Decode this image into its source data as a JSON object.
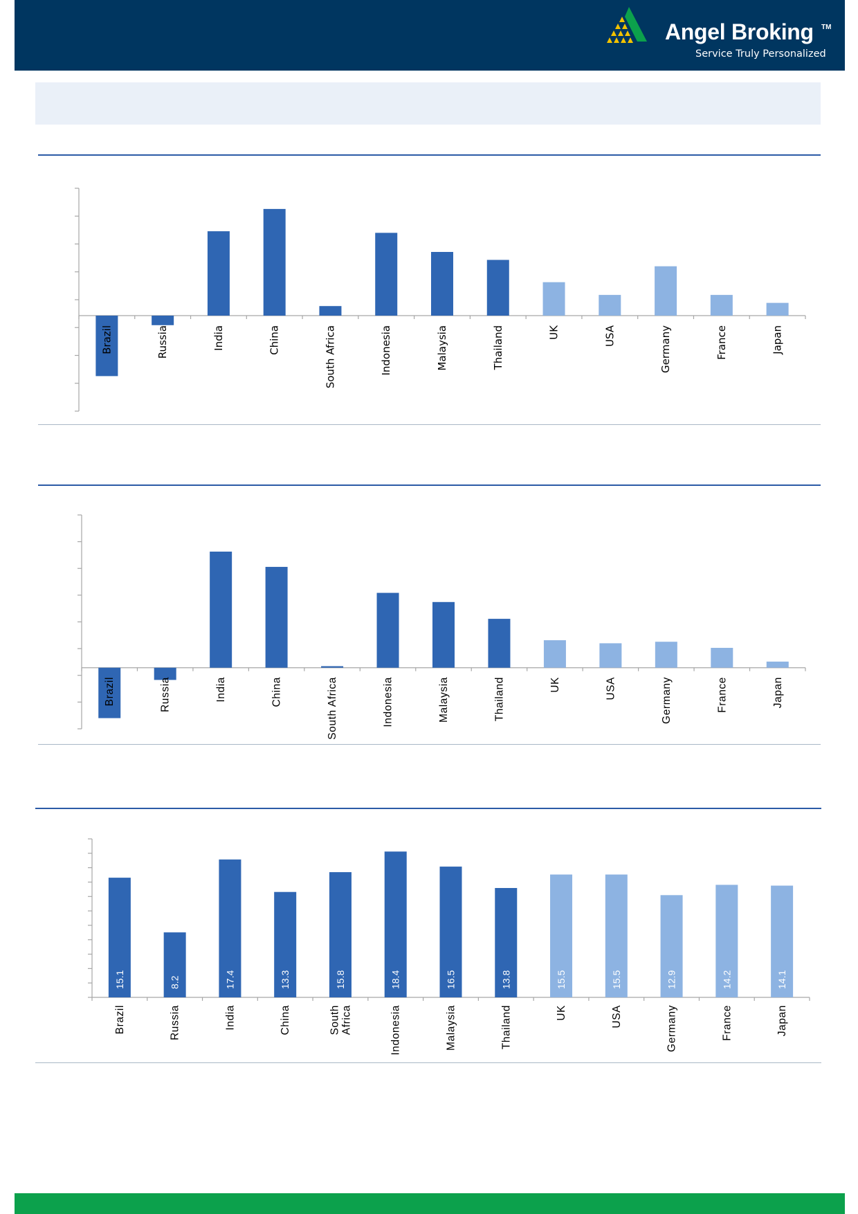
{
  "brand": {
    "name": "Angel Broking",
    "trademark": "TM",
    "tagline": "Service Truly Personalized"
  },
  "colors": {
    "header": "#003660",
    "footer": "#0ca14c",
    "emerging_bar": "#2f66b3",
    "developed_bar": "#8db3e2",
    "title_band": "#eaf0f8"
  },
  "chart_data": [
    {
      "type": "bar",
      "categories": [
        "Brazil",
        "Russia",
        "India",
        "China",
        "South Africa",
        "Indonesia",
        "Malaysia",
        "Thailand",
        "UK",
        "USA",
        "Germany",
        "France",
        "Japan"
      ],
      "values": [
        -19,
        -3,
        26.5,
        33.5,
        3,
        26,
        20,
        17.5,
        10.5,
        6.5,
        15.5,
        6.5,
        4
      ],
      "ylim": [
        -30,
        40
      ],
      "tick_labels_shown": false,
      "grid": false,
      "emerging_categories": [
        "Brazil",
        "Russia",
        "India",
        "China",
        "South Africa",
        "Indonesia",
        "Malaysia",
        "Thailand"
      ],
      "developed_categories": [
        "UK",
        "USA",
        "Germany",
        "France",
        "Japan"
      ]
    },
    {
      "type": "bar",
      "categories": [
        "Brazil",
        "Russia",
        "India",
        "China",
        "South Africa",
        "Indonesia",
        "Malaysia",
        "Thailand",
        "UK",
        "USA",
        "Germany",
        "France",
        "Japan"
      ],
      "values": [
        -16.5,
        -4,
        38,
        33,
        0.5,
        24.5,
        21.5,
        16,
        9,
        8,
        8.5,
        6.5,
        2
      ],
      "ylim": [
        -20,
        50
      ],
      "tick_labels_shown": false,
      "grid": false,
      "emerging_categories": [
        "Brazil",
        "Russia",
        "India",
        "China",
        "South Africa",
        "Indonesia",
        "Malaysia",
        "Thailand"
      ],
      "developed_categories": [
        "UK",
        "USA",
        "Germany",
        "France",
        "Japan"
      ]
    },
    {
      "type": "bar",
      "categories": [
        "Brazil",
        "Russia",
        "India",
        "China",
        "South Africa",
        "Indonesia",
        "Malaysia",
        "Thailand",
        "UK",
        "USA",
        "Germany",
        "France",
        "Japan"
      ],
      "category_lines": [
        [
          "Brazil"
        ],
        [
          "Russia"
        ],
        [
          "India"
        ],
        [
          "China"
        ],
        [
          "South",
          "Africa"
        ],
        [
          "Indonesia"
        ],
        [
          "Malaysia"
        ],
        [
          "Thailand"
        ],
        [
          "UK"
        ],
        [
          "USA"
        ],
        [
          "Germany"
        ],
        [
          "France"
        ],
        [
          "Japan"
        ]
      ],
      "values": [
        15.1,
        8.2,
        17.4,
        13.3,
        15.8,
        18.4,
        16.5,
        13.8,
        15.5,
        15.5,
        12.9,
        14.2,
        14.1
      ],
      "value_labels": [
        "15.1",
        "8.2",
        "17.4",
        "13.3",
        "15.8",
        "18.4",
        "16.5",
        "13.8",
        "15.5",
        "15.5",
        "12.9",
        "14.2",
        "14.1"
      ],
      "ylim": [
        0,
        20
      ],
      "tick_labels_shown": false,
      "grid": false,
      "emerging_categories": [
        "Brazil",
        "Russia",
        "India",
        "China",
        "South Africa",
        "Indonesia",
        "Malaysia",
        "Thailand"
      ],
      "developed_categories": [
        "UK",
        "USA",
        "Germany",
        "France",
        "Japan"
      ]
    }
  ]
}
